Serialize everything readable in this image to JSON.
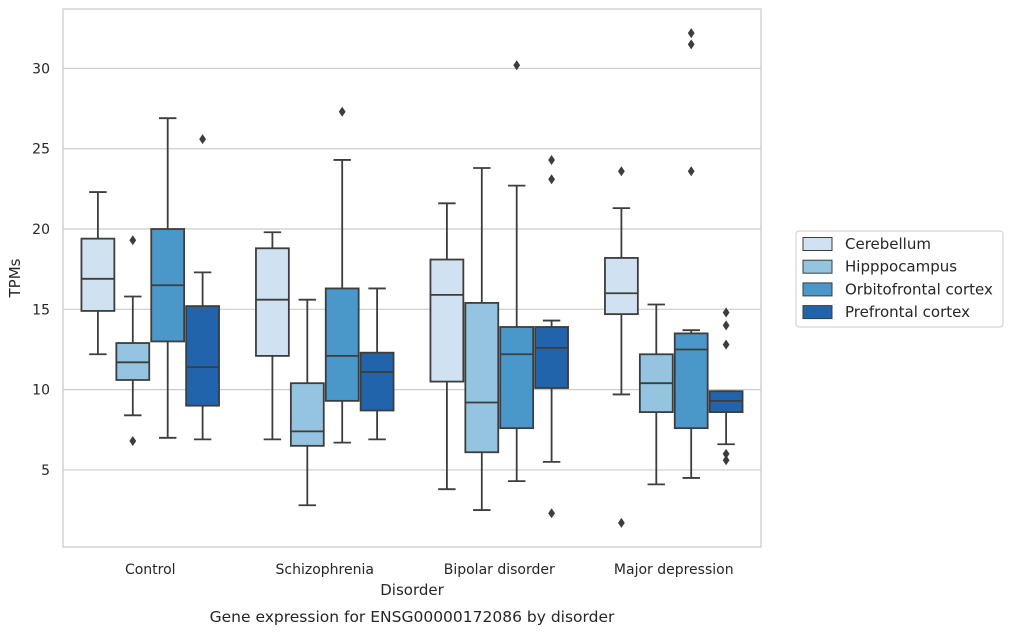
{
  "caption": "Gene expression for ENSG00000172086 by disorder",
  "chart_data": {
    "type": "boxplot",
    "title": "",
    "xlabel": "Disorder",
    "ylabel": "TPMs",
    "ylim": [
      0.2,
      33.7
    ],
    "yticks": [
      5,
      10,
      15,
      20,
      25,
      30
    ],
    "grid": "horizontal",
    "legend_position": "right",
    "categories": [
      "Control",
      "Schizophrenia",
      "Bipolar disorder",
      "Major depression"
    ],
    "colors": [
      "#d0e1f2",
      "#94c4df",
      "#4a98c9",
      "#2164ab"
    ],
    "edge_color": "#3d3d3d",
    "series": [
      {
        "name": "Cerebellum",
        "boxes": [
          {
            "whislo": 12.2,
            "q1": 14.9,
            "med": 16.9,
            "q3": 19.4,
            "whishi": 22.3,
            "fliers": []
          },
          {
            "whislo": 6.9,
            "q1": 12.1,
            "med": 15.6,
            "q3": 18.8,
            "whishi": 19.8,
            "fliers": []
          },
          {
            "whislo": 3.8,
            "q1": 10.5,
            "med": 15.9,
            "q3": 18.1,
            "whishi": 21.6,
            "fliers": []
          },
          {
            "whislo": 9.7,
            "q1": 14.7,
            "med": 16.0,
            "q3": 18.2,
            "whishi": 21.3,
            "fliers": [
              23.6,
              1.7
            ]
          }
        ]
      },
      {
        "name": "Hipppocampus",
        "boxes": [
          {
            "whislo": 8.4,
            "q1": 10.6,
            "med": 11.7,
            "q3": 12.9,
            "whishi": 15.8,
            "fliers": [
              19.3,
              6.8
            ]
          },
          {
            "whislo": 2.8,
            "q1": 6.5,
            "med": 7.4,
            "q3": 10.4,
            "whishi": 15.6,
            "fliers": []
          },
          {
            "whislo": 2.5,
            "q1": 6.1,
            "med": 9.2,
            "q3": 15.4,
            "whishi": 23.8,
            "fliers": []
          },
          {
            "whislo": 4.1,
            "q1": 8.6,
            "med": 10.4,
            "q3": 12.2,
            "whishi": 15.3,
            "fliers": []
          }
        ]
      },
      {
        "name": "Orbitofrontal cortex",
        "boxes": [
          {
            "whislo": 7.0,
            "q1": 13.0,
            "med": 16.5,
            "q3": 20.0,
            "whishi": 26.9,
            "fliers": []
          },
          {
            "whislo": 6.7,
            "q1": 9.3,
            "med": 12.1,
            "q3": 16.3,
            "whishi": 24.3,
            "fliers": [
              27.3
            ]
          },
          {
            "whislo": 4.3,
            "q1": 7.6,
            "med": 12.2,
            "q3": 13.9,
            "whishi": 22.7,
            "fliers": [
              30.2
            ]
          },
          {
            "whislo": 4.5,
            "q1": 7.6,
            "med": 12.5,
            "q3": 13.5,
            "whishi": 13.7,
            "fliers": [
              23.6,
              31.5,
              32.2
            ]
          }
        ]
      },
      {
        "name": "Prefrontal cortex",
        "boxes": [
          {
            "whislo": 6.9,
            "q1": 9.0,
            "med": 11.4,
            "q3": 15.2,
            "whishi": 17.3,
            "fliers": [
              25.6
            ]
          },
          {
            "whislo": 6.9,
            "q1": 8.7,
            "med": 11.1,
            "q3": 12.3,
            "whishi": 16.3,
            "fliers": []
          },
          {
            "whislo": 5.5,
            "q1": 10.1,
            "med": 12.6,
            "q3": 13.9,
            "whishi": 14.3,
            "fliers": [
              24.3,
              23.1,
              2.3
            ]
          },
          {
            "whislo": 6.6,
            "q1": 8.6,
            "med": 9.3,
            "q3": 9.9,
            "whishi": 9.9,
            "fliers": [
              14.8,
              14.0,
              12.8,
              6.0,
              5.6
            ]
          }
        ]
      }
    ]
  }
}
